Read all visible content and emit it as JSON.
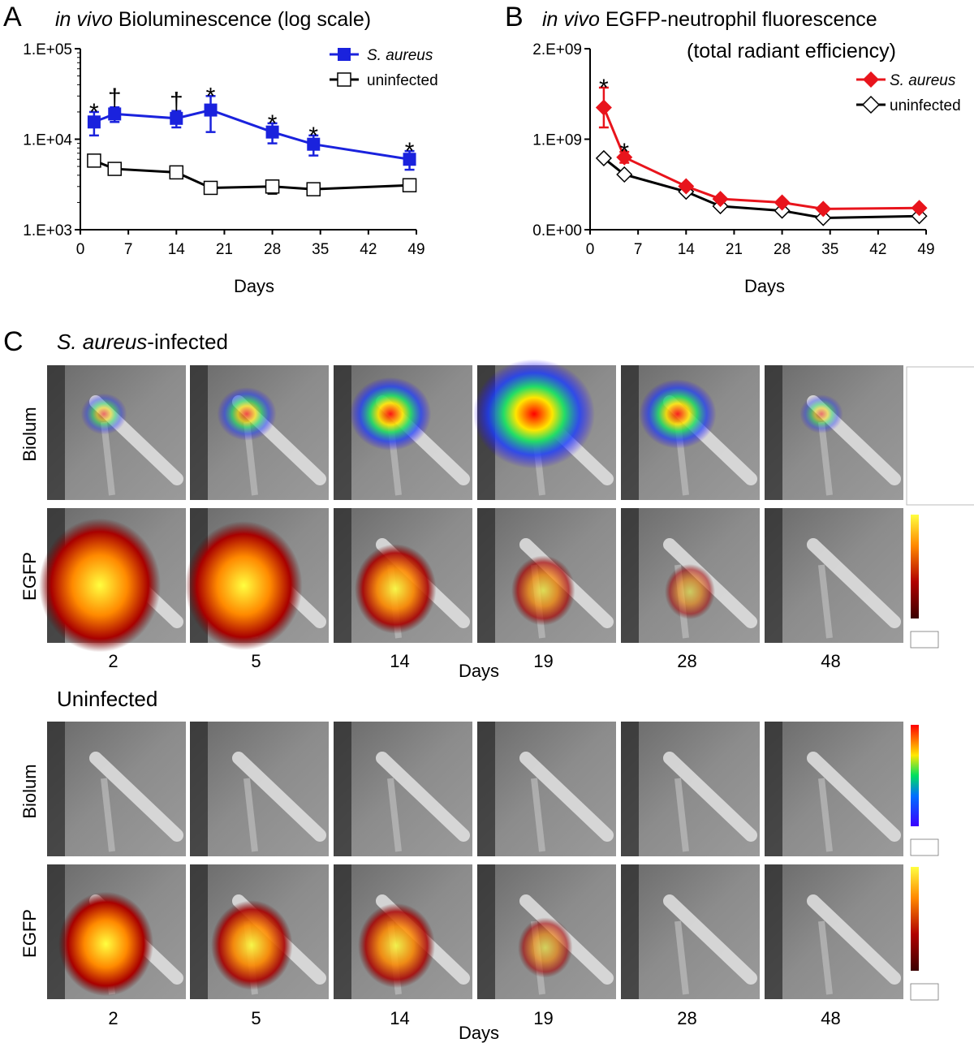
{
  "panels": {
    "a_letter": "A",
    "b_letter": "B",
    "c_letter": "C"
  },
  "chart_data": [
    {
      "type": "line",
      "title_italic": "in vivo",
      "title_rest": " Bioluminescence (log scale)",
      "xlabel": "Days",
      "ylabel": "",
      "yscale": "log",
      "ylim": [
        1000,
        100000
      ],
      "xlim": [
        0,
        49
      ],
      "xticks": [
        "0",
        "7",
        "14",
        "21",
        "28",
        "35",
        "42",
        "49"
      ],
      "yticks": [
        "1.E+03",
        "1.E+04",
        "1.E+05"
      ],
      "x": [
        2,
        5,
        14,
        19,
        28,
        34,
        48
      ],
      "series": [
        {
          "name": "S. aureus",
          "color": "#1a22dd",
          "marker": "square-filled",
          "values": [
            15500,
            19000,
            17000,
            21000,
            12000,
            8800,
            6000
          ],
          "err": [
            4500,
            3500,
            3500,
            9000,
            3000,
            2200,
            1400
          ],
          "annotations": [
            "*",
            "†",
            "†",
            "*",
            "*",
            "*",
            "*"
          ]
        },
        {
          "name": "uninfected",
          "color": "#000000",
          "marker": "square-open",
          "values": [
            5800,
            4700,
            4300,
            2900,
            3000,
            2800,
            3100
          ],
          "err": [
            0,
            0,
            0,
            0,
            500,
            0,
            0
          ],
          "annotations": []
        }
      ],
      "legend_position": "top-right"
    },
    {
      "type": "line",
      "title_line1_italic": "in vivo",
      "title_line1_rest": " EGFP-neutrophil fluorescence",
      "title_line2": "(total radiant efficiency)",
      "xlabel": "Days",
      "ylabel": "",
      "ylim": [
        0,
        2000000000
      ],
      "xlim": [
        0,
        49
      ],
      "xticks": [
        "0",
        "7",
        "14",
        "21",
        "28",
        "35",
        "42",
        "49"
      ],
      "yticks": [
        "0.E+00",
        "1.E+09",
        "2.E+09"
      ],
      "x": [
        2,
        5,
        14,
        19,
        28,
        34,
        48
      ],
      "series": [
        {
          "name": "S. aureus",
          "color": "#e8141c",
          "marker": "diamond-filled",
          "values": [
            1350000000,
            800000000,
            480000000,
            340000000,
            300000000,
            230000000,
            240000000
          ],
          "err": [
            220000000,
            60000000,
            0,
            0,
            0,
            0,
            0
          ],
          "annotations": [
            "*",
            "*",
            "",
            "",
            "",
            "",
            ""
          ]
        },
        {
          "name": "uninfected",
          "color": "#000000",
          "marker": "diamond-open",
          "values": [
            790000000,
            610000000,
            420000000,
            260000000,
            210000000,
            130000000,
            150000000
          ],
          "err": [
            0,
            0,
            0,
            0,
            0,
            0,
            0
          ],
          "annotations": []
        }
      ],
      "legend_position": "top-right"
    }
  ],
  "imaging": {
    "infected_title_italic": "S. aureus",
    "infected_title_rest": "-infected",
    "uninfected_title": "Uninfected",
    "row_biolum": "Biolum",
    "row_egfp": "EGFP",
    "days_label": "Days",
    "days": [
      "2",
      "5",
      "14",
      "19",
      "28",
      "48"
    ],
    "infected": {
      "biolum_intensity": [
        0.15,
        0.3,
        0.55,
        1.0,
        0.5,
        0.12
      ],
      "egfp_intensity": [
        1.0,
        0.95,
        0.55,
        0.35,
        0.2,
        0.0
      ]
    },
    "uninfected": {
      "biolum_intensity": [
        0,
        0,
        0,
        0,
        0,
        0
      ],
      "egfp_intensity": [
        0.7,
        0.55,
        0.5,
        0.25,
        0.0,
        0.0
      ]
    }
  }
}
